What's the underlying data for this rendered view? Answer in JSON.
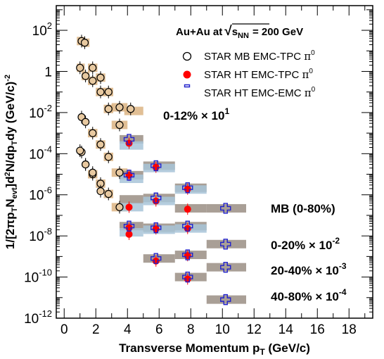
{
  "chart_data": {
    "type": "scatter",
    "title": "",
    "header": "Au+Au at √sNN = 200 GeV",
    "header_parts": {
      "prefix": "Au+Au at",
      "sqrt": "√",
      "s": "s",
      "sub": "NN",
      "suffix": "= 200 GeV"
    },
    "xlabel": "Transverse Momentum pT (GeV/c)",
    "xlabel_parts": {
      "main": "Transverse Momentum p",
      "sub": "T",
      "unit": " (GeV/c)"
    },
    "ylabel": "1/[2πpTNevt]d²N/dpTdy (GeV/c)⁻²",
    "ylabel_parts": {
      "a": "1/[2πp",
      "b": "T",
      "c": "N",
      "d": "evt",
      "e": "]d",
      "f": "2",
      "g": "N/dp",
      "h": "T",
      "i": "dy (GeV/c)",
      "j": "-2"
    },
    "xlim": [
      -0.5,
      19.5
    ],
    "ylim_log10": [
      -12,
      3.2
    ],
    "y_scale": "log",
    "grid": false,
    "legend_position": "top-right",
    "x_ticks": [
      "0",
      "2",
      "4",
      "6",
      "8",
      "10",
      "12",
      "14",
      "16",
      "18"
    ],
    "y_ticks": [
      {
        "base": "10",
        "exp": "2",
        "value": 100
      },
      {
        "base": "1",
        "exp": "",
        "value": 1
      },
      {
        "base": "10",
        "exp": "-2",
        "value": 0.01
      },
      {
        "base": "10",
        "exp": "-4",
        "value": 0.0001
      },
      {
        "base": "10",
        "exp": "-6",
        "value": 1e-06
      },
      {
        "base": "10",
        "exp": "-8",
        "value": 1e-08
      },
      {
        "base": "10",
        "exp": "-10",
        "value": 1e-10
      },
      {
        "base": "10",
        "exp": "-12",
        "value": 1e-12
      }
    ],
    "legend": [
      {
        "label": "STAR MB EMC-TPC π⁰",
        "text": "STAR MB EMC-TPC ",
        "pi": "π",
        "sup": "0",
        "marker": "open-circle"
      },
      {
        "label": "STAR HT EMC-TPC π⁰",
        "text": "STAR HT EMC-TPC ",
        "pi": "π",
        "sup": "0",
        "marker": "filled-circle"
      },
      {
        "label": "STAR HT EMC-EMC π⁰",
        "text": "STAR HT EMC-EMC ",
        "pi": "π",
        "sup": "0",
        "marker": "open-cross"
      }
    ],
    "centrality_labels": [
      {
        "text": "0-12% × 10",
        "sup": "1",
        "anchor_x": 5.7,
        "anchor_y": 0.003
      },
      {
        "text": "MB (0-80%)",
        "sup": "",
        "anchor_x": 12.5,
        "anchor_y": 1e-07
      },
      {
        "text": "0-20% × 10",
        "sup": "-2",
        "anchor_x": 12.5,
        "anchor_y": 1.5e-09
      },
      {
        "text": "20-40% × 10",
        "sup": "-3",
        "anchor_x": 12.5,
        "anchor_y": 1e-10
      },
      {
        "text": "40-80% × 10",
        "sup": "-4",
        "anchor_x": 12.5,
        "anchor_y": 3e-12
      }
    ],
    "colors": {
      "open_circle_fill": "#e8c9a0",
      "filled_circle": "#ff0000",
      "cross": "#2222cc",
      "band_tan": "#dcb482",
      "band_gray": "#9a8e84",
      "band_blue": "#a8c4d8"
    },
    "series": [
      {
        "name": "STAR MB EMC-TPC π⁰",
        "marker": "open-circle",
        "groups": [
          {
            "x": [
              1.1,
              1.3,
              1.8,
              2.3,
              2.8,
              3.5,
              4.2
            ],
            "y": [
              30,
              25,
              1.5,
              0.5,
              0.1,
              0.018,
              0.015
            ]
          },
          {
            "x": [
              1.0,
              1.35,
              1.8,
              2.3,
              2.8,
              3.5
            ],
            "y": [
              1.5,
              0.6,
              0.35,
              0.1,
              0.015,
              0.0025
            ]
          },
          {
            "x": [
              1.1,
              1.35,
              1.8,
              2.3,
              2.8,
              3.5
            ],
            "y": [
              0.006,
              0.0035,
              0.001,
              0.00028,
              7e-05,
              1.2e-05
            ]
          },
          {
            "x": [
              1.1,
              1.35,
              1.8,
              2.3,
              2.8,
              3.5
            ],
            "y": [
              0.00012,
              3e-05,
              1e-05,
              3.5e-06,
              1.1e-06,
              2.5e-07
            ]
          },
          {
            "x": [
              1.0,
              1.35,
              1.8,
              2.3
            ],
            "y": [
              0.00014,
              3e-05,
              1.2e-05,
              1.5e-06
            ]
          }
        ]
      },
      {
        "name": "STAR HT EMC-TPC π⁰",
        "marker": "filled-circle",
        "groups": [
          {
            "x": [
              4.1,
              5.8,
              7.8
            ],
            "y": [
              0.00032,
              2.2e-05,
              1.9e-06
            ]
          },
          {
            "x": [
              4.1,
              5.8,
              7.8
            ],
            "y": [
              9e-06,
              5e-07,
              2e-07
            ]
          },
          {
            "x": [
              4.1
            ],
            "y": [
              2.5e-07
            ]
          },
          {
            "x": [
              4.1,
              5.8,
              7.8
            ],
            "y": [
              2.5e-08,
              2.2e-08,
              2.3e-08
            ]
          },
          {
            "x": [
              4.1,
              5.8,
              7.8
            ],
            "y": [
              1.2e-08,
              6e-10,
              1.1e-09
            ]
          },
          {
            "x": [
              7.8
            ],
            "y": [
              8e-11
            ]
          }
        ]
      },
      {
        "name": "STAR HT EMC-EMC π⁰",
        "marker": "open-cross",
        "groups": [
          {
            "x": [
              4.1,
              5.8,
              7.8,
              10.2
            ],
            "y": [
              0.0005,
              2.6e-05,
              2.2e-06,
              2.2e-07
            ]
          },
          {
            "x": [
              4.1,
              5.8
            ],
            "y": [
              9e-06,
              7e-07
            ]
          },
          {
            "x": [
              4.1,
              5.8,
              7.8,
              10.2
            ],
            "y": [
              3e-08,
              2.5e-08,
              3e-08,
              4e-09
            ]
          },
          {
            "x": [
              5.8,
              7.8,
              10.2
            ],
            "y": [
              8e-10,
              1.2e-09,
              3e-10
            ]
          },
          {
            "x": [
              7.8,
              10.2
            ],
            "y": [
              1e-10,
              8e-12
            ]
          }
        ]
      }
    ],
    "systematic_bands": [
      {
        "x0": 0.8,
        "x1": 1.3,
        "y": 30,
        "color": "band_tan"
      },
      {
        "x0": 1.1,
        "x1": 1.6,
        "y": 25,
        "color": "band_tan"
      },
      {
        "x0": 0.8,
        "x1": 1.3,
        "y": 1.5,
        "color": "band_tan"
      },
      {
        "x0": 1.1,
        "x1": 1.6,
        "y": 0.6,
        "color": "band_tan"
      },
      {
        "x0": 1.5,
        "x1": 2.1,
        "y": 1.5,
        "color": "band_tan"
      },
      {
        "x0": 1.5,
        "x1": 2.1,
        "y": 0.35,
        "color": "band_tan"
      },
      {
        "x0": 2.0,
        "x1": 2.6,
        "y": 0.5,
        "color": "band_tan"
      },
      {
        "x0": 2.0,
        "x1": 2.6,
        "y": 0.1,
        "color": "band_tan"
      },
      {
        "x0": 2.5,
        "x1": 3.1,
        "y": 0.1,
        "color": "band_tan"
      },
      {
        "x0": 2.5,
        "x1": 3.1,
        "y": 0.015,
        "color": "band_tan"
      },
      {
        "x0": 3.0,
        "x1": 4.0,
        "y": 0.018,
        "color": "band_tan"
      },
      {
        "x0": 3.0,
        "x1": 4.0,
        "y": 0.0025,
        "color": "band_tan"
      },
      {
        "x0": 3.8,
        "x1": 5.0,
        "y": 0.012,
        "color": "band_tan"
      },
      {
        "x0": 1.5,
        "x1": 2.1,
        "y": 0.001,
        "color": "band_tan"
      },
      {
        "x0": 2.0,
        "x1": 2.6,
        "y": 0.00028,
        "color": "band_tan"
      },
      {
        "x0": 2.5,
        "x1": 3.1,
        "y": 7e-05,
        "color": "band_tan"
      },
      {
        "x0": 3.0,
        "x1": 4.0,
        "y": 1.2e-05,
        "color": "band_tan"
      },
      {
        "x0": 1.5,
        "x1": 2.1,
        "y": 1e-05,
        "color": "band_tan"
      },
      {
        "x0": 2.0,
        "x1": 2.6,
        "y": 3.5e-06,
        "color": "band_tan"
      },
      {
        "x0": 2.5,
        "x1": 3.1,
        "y": 1.1e-06,
        "color": "band_tan"
      },
      {
        "x0": 3.0,
        "x1": 4.0,
        "y": 2.5e-07,
        "color": "band_tan"
      },
      {
        "x0": 3.5,
        "x1": 5.0,
        "y": 0.0005,
        "color": "band_gray"
      },
      {
        "x0": 3.5,
        "x1": 5.0,
        "y": 0.00025,
        "color": "band_blue"
      },
      {
        "x0": 5.0,
        "x1": 7.0,
        "y": 2.6e-05,
        "color": "band_gray"
      },
      {
        "x0": 5.0,
        "x1": 7.0,
        "y": 2e-05,
        "color": "band_blue"
      },
      {
        "x0": 7.0,
        "x1": 9.0,
        "y": 2.2e-06,
        "color": "band_gray"
      },
      {
        "x0": 7.0,
        "x1": 9.0,
        "y": 1.8e-06,
        "color": "band_blue"
      },
      {
        "x0": 3.5,
        "x1": 5.0,
        "y": 9e-06,
        "color": "band_gray"
      },
      {
        "x0": 3.5,
        "x1": 5.0,
        "y": 6e-06,
        "color": "band_blue"
      },
      {
        "x0": 3.5,
        "x1": 5.0,
        "y": 6e-07,
        "color": "band_gray"
      },
      {
        "x0": 3.5,
        "x1": 5.0,
        "y": 2.5e-07,
        "color": "band_blue"
      },
      {
        "x0": 5.0,
        "x1": 7.0,
        "y": 7e-07,
        "color": "band_gray"
      },
      {
        "x0": 5.0,
        "x1": 7.0,
        "y": 5e-07,
        "color": "band_blue"
      },
      {
        "x0": 7.0,
        "x1": 9.0,
        "y": 2.2e-07,
        "color": "band_gray"
      },
      {
        "x0": 9.0,
        "x1": 11.5,
        "y": 2.2e-07,
        "color": "band_gray"
      },
      {
        "x0": 3.5,
        "x1": 5.0,
        "y": 3e-08,
        "color": "band_gray"
      },
      {
        "x0": 3.5,
        "x1": 5.0,
        "y": 1.5e-08,
        "color": "band_blue"
      },
      {
        "x0": 5.0,
        "x1": 7.0,
        "y": 2.5e-08,
        "color": "band_gray"
      },
      {
        "x0": 5.0,
        "x1": 7.0,
        "y": 2e-08,
        "color": "band_blue"
      },
      {
        "x0": 7.0,
        "x1": 9.0,
        "y": 3e-08,
        "color": "band_gray"
      },
      {
        "x0": 7.0,
        "x1": 9.0,
        "y": 2.3e-08,
        "color": "band_blue"
      },
      {
        "x0": 9.0,
        "x1": 11.5,
        "y": 4e-09,
        "color": "band_gray"
      },
      {
        "x0": 5.0,
        "x1": 7.0,
        "y": 8e-10,
        "color": "band_gray"
      },
      {
        "x0": 7.0,
        "x1": 9.0,
        "y": 1.2e-09,
        "color": "band_gray"
      },
      {
        "x0": 9.0,
        "x1": 11.5,
        "y": 3e-10,
        "color": "band_gray"
      },
      {
        "x0": 7.0,
        "x1": 9.0,
        "y": 1e-10,
        "color": "band_gray"
      },
      {
        "x0": 9.0,
        "x1": 11.5,
        "y": 8e-12,
        "color": "band_gray"
      }
    ]
  }
}
